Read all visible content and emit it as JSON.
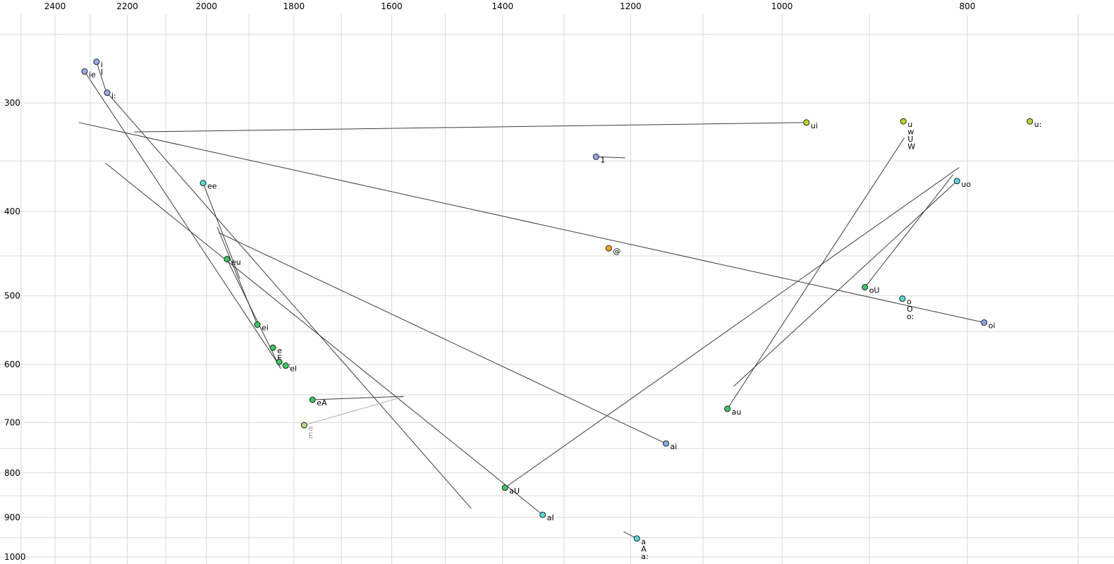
{
  "chart_data": {
    "type": "scatter",
    "title": "",
    "description": "Vowel formant plot (F2 horizontal reversed log scale, F1 vertical log scale) with diphthong trajectory lines",
    "background": "#ffffff",
    "grid_color": "#d9d9d9",
    "line_color": "#3c3c3c",
    "axis_text_color": "#000000",
    "x_axis": {
      "label": "",
      "scale": "log",
      "reversed": true,
      "ticks": [
        2400,
        2200,
        2000,
        1800,
        1600,
        1400,
        1200,
        1000,
        800
      ],
      "grid": {
        "max": 2500,
        "min": 700,
        "step": 100
      }
    },
    "y_axis": {
      "label": "",
      "scale": "log",
      "ticks": [
        300,
        400,
        500,
        600,
        700,
        800,
        900,
        1000
      ],
      "grid": {
        "min": 250,
        "max": 1000,
        "step": 50
      }
    },
    "points": [
      {
        "labels": [
          "ie"
        ],
        "f2": 2316,
        "f1": 276,
        "color": "#9aa8ea"
      },
      {
        "labels": [
          "i",
          "I"
        ],
        "f2": 2283,
        "f1": 269,
        "color": "#9aa8ea"
      },
      {
        "labels": [
          "i:"
        ],
        "f2": 2254,
        "f1": 292,
        "color": "#9aa8ea"
      },
      {
        "labels": [
          "ee"
        ],
        "f2": 2008,
        "f1": 371,
        "color": "#5bd6d6"
      },
      {
        "labels": [
          "eu"
        ],
        "f2": 1951,
        "f1": 454,
        "color": "#3cc763"
      },
      {
        "labels": [
          "ei"
        ],
        "f2": 1881,
        "f1": 540,
        "color": "#3cc763"
      },
      {
        "labels": [
          "e",
          "E"
        ],
        "f2": 1846,
        "f1": 574,
        "color": "#3cc763"
      },
      {
        "labels": [
          "e:"
        ],
        "f2": 1832,
        "f1": 596,
        "color": "#3cc763"
      },
      {
        "labels": [
          "el"
        ],
        "f2": 1818,
        "f1": 602,
        "color": "#3cc763"
      },
      {
        "labels": [
          "eA"
        ],
        "f2": 1760,
        "f1": 659,
        "color": "#3cc763"
      },
      {
        "labels": [
          "e",
          "E"
        ],
        "f2": 1778,
        "f1": 705,
        "color": "#abe07c",
        "label_color": "#999999"
      },
      {
        "labels": [
          "aU"
        ],
        "f2": 1396,
        "f1": 832,
        "color": "#3cc763"
      },
      {
        "labels": [
          "aI"
        ],
        "f2": 1334,
        "f1": 894,
        "color": "#5bd6d6"
      },
      {
        "labels": [
          "a",
          "A",
          "a:"
        ],
        "f2": 1191,
        "f1": 952,
        "color": "#5bd6d6"
      },
      {
        "labels": [
          "ai"
        ],
        "f2": 1150,
        "f1": 740,
        "color": "#7fb0e8"
      },
      {
        "labels": [
          "au"
        ],
        "f2": 1068,
        "f1": 675,
        "color": "#3cc763"
      },
      {
        "labels": [
          "@"
        ],
        "f2": 1232,
        "f1": 441,
        "color": "#f2a71e"
      },
      {
        "labels": [
          "1"
        ],
        "f2": 1251,
        "f1": 346,
        "color": "#9aa8ea"
      },
      {
        "labels": [
          "ui"
        ],
        "f2": 971,
        "f1": 316,
        "color": "#c2d42a"
      },
      {
        "labels": [
          "u",
          "w",
          "U",
          "W"
        ],
        "f2": 864,
        "f1": 315,
        "color": "#c2d42a"
      },
      {
        "labels": [
          "u:"
        ],
        "f2": 742,
        "f1": 315,
        "color": "#c2d42a"
      },
      {
        "labels": [
          "uo"
        ],
        "f2": 810,
        "f1": 369,
        "color": "#5bd6d6"
      },
      {
        "labels": [
          "oU"
        ],
        "f2": 905,
        "f1": 489,
        "color": "#3cc763"
      },
      {
        "labels": [
          "o",
          "O",
          "o:"
        ],
        "f2": 865,
        "f1": 504,
        "color": "#5bd6d6"
      },
      {
        "labels": [
          "oi"
        ],
        "f2": 784,
        "f1": 537,
        "color": "#8fa2ec"
      }
    ],
    "trajectories": [
      {
        "name": "ui",
        "from": [
          971,
          316
        ],
        "to": [
          2182,
          324
        ]
      },
      {
        "name": "oi",
        "from": [
          784,
          537
        ],
        "to": [
          2332,
          316
        ]
      },
      {
        "name": "ie",
        "from": [
          2316,
          276
        ],
        "to": [
          1830,
          604
        ]
      },
      {
        "name": "i:",
        "from": [
          2254,
          292
        ],
        "to": [
          1454,
          879
        ]
      },
      {
        "name": "aI",
        "from": [
          1334,
          894
        ],
        "to": [
          2258,
          352
        ]
      },
      {
        "name": "ee",
        "from": [
          2008,
          371
        ],
        "to": [
          1921,
          478
        ]
      },
      {
        "name": "eu",
        "from": [
          1951,
          454
        ],
        "to": [
          1829,
          607
        ]
      },
      {
        "name": "ei",
        "from": [
          1881,
          540
        ],
        "to": [
          1974,
          417
        ]
      },
      {
        "name": "aU",
        "from": [
          1396,
          832
        ],
        "to": [
          808,
          356
        ]
      },
      {
        "name": "ai",
        "from": [
          1150,
          740
        ],
        "to": [
          1971,
          423
        ]
      },
      {
        "name": "au",
        "from": [
          1068,
          675
        ],
        "to": [
          863,
          329
        ]
      },
      {
        "name": "oU",
        "from": [
          905,
          489
        ],
        "to": [
          814,
          363
        ]
      },
      {
        "name": "uo",
        "from": [
          810,
          369
        ],
        "to": [
          1060,
          636
        ]
      },
      {
        "name": "1",
        "from": [
          1251,
          346
        ],
        "to": [
          1208,
          347
        ]
      },
      {
        "name": "a",
        "from": [
          1191,
          952
        ],
        "to": [
          1210,
          935
        ]
      },
      {
        "name": "eA",
        "from": [
          1760,
          659
        ],
        "to": [
          1577,
          653
        ]
      },
      {
        "name": "e-gray",
        "from": [
          1778,
          705
        ],
        "to": [
          1579,
          654
        ],
        "color": "#b0b0b0"
      },
      {
        "name": "i",
        "from": [
          2283,
          269
        ],
        "to": [
          2258,
          290
        ]
      }
    ]
  }
}
